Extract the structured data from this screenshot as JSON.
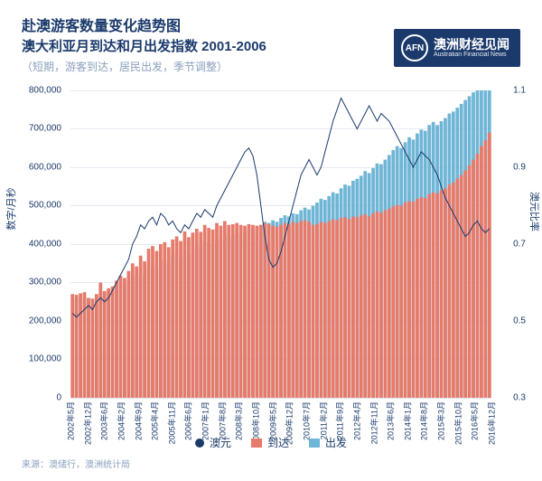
{
  "titles": {
    "main": "赴澳游客数量变化趋势图",
    "sub": "澳大利亚月到达和月出发指数 2001-2006",
    "note": "（短期，游客到达，居民出发，季节调整）"
  },
  "logo": {
    "badge": "AFN",
    "cn": "澳洲财经见闻",
    "en": "Australian Financial News"
  },
  "chart": {
    "type": "combo-bar-line",
    "background": "#ffffff",
    "grid_color": "#e4e9f1",
    "text_color": "#1b3a6b",
    "muted_color": "#8aa0bd",
    "y_left": {
      "title": "数字/月秒",
      "min": 0,
      "max": 800000,
      "step": 100000,
      "labels": [
        "0",
        "100,000",
        "200,000",
        "300,000",
        "400,000",
        "500,000",
        "600,000",
        "700,000",
        "800,000"
      ]
    },
    "y_right": {
      "title": "澳元比率",
      "min": 0.3,
      "max": 1.1,
      "step": 0.2,
      "labels": [
        "0.3",
        "0.5",
        "0.7",
        "0.9",
        "1.1"
      ]
    },
    "x_labels": [
      "2002年5月",
      "2002年12月",
      "2003年6月",
      "2004年2月",
      "2004年9月",
      "2005年4月",
      "2005年11月",
      "2006年6月",
      "2007年1月",
      "2007年8月",
      "2008年3月",
      "2008年10月",
      "2009年5月",
      "2009年12月",
      "2010年7月",
      "2011年2月",
      "2011年9月",
      "2012年4月",
      "2012年11月",
      "2013年6月",
      "2014年1月",
      "2014年8月",
      "2015年3月",
      "2015年10月",
      "2016年5月",
      "2016年12月"
    ],
    "series": {
      "arrivals": {
        "label": "到达",
        "color": "#e67a6b",
        "values": [
          270,
          268,
          272,
          275,
          260,
          258,
          270,
          300,
          278,
          285,
          290,
          305,
          318,
          312,
          330,
          350,
          342,
          370,
          355,
          388,
          395,
          382,
          400,
          405,
          392,
          412,
          420,
          408,
          433,
          418,
          430,
          440,
          432,
          450,
          442,
          438,
          455,
          448,
          460,
          450,
          452,
          455,
          450,
          448,
          452,
          450,
          448,
          450,
          455,
          452,
          448,
          445,
          450,
          455,
          452,
          458,
          455,
          460,
          462,
          458,
          450,
          452,
          458,
          455,
          460,
          465,
          462,
          468,
          470,
          465,
          472,
          470,
          475,
          478,
          472,
          480,
          485,
          482,
          488,
          492,
          498,
          502,
          500,
          508,
          512,
          510,
          518,
          522,
          520,
          530,
          535,
          532,
          540,
          545,
          555,
          560,
          570,
          580,
          592,
          605,
          620,
          635,
          655,
          670,
          690
        ]
      },
      "departures": {
        "label": "出发",
        "color": "#6fb5d6",
        "values": [
          260,
          258,
          262,
          265,
          260,
          258,
          265,
          280,
          275,
          278,
          282,
          290,
          300,
          295,
          305,
          320,
          315,
          330,
          318,
          340,
          345,
          338,
          355,
          360,
          350,
          368,
          375,
          365,
          385,
          375,
          388,
          398,
          392,
          408,
          405,
          400,
          415,
          412,
          425,
          420,
          425,
          430,
          428,
          432,
          440,
          438,
          445,
          450,
          458,
          455,
          462,
          458,
          468,
          475,
          472,
          480,
          478,
          488,
          495,
          490,
          500,
          508,
          518,
          515,
          525,
          535,
          532,
          545,
          555,
          552,
          565,
          570,
          578,
          590,
          585,
          598,
          610,
          608,
          620,
          632,
          645,
          655,
          650,
          665,
          678,
          672,
          688,
          698,
          695,
          710,
          718,
          710,
          720,
          728,
          740,
          745,
          755,
          765,
          775,
          785,
          795,
          802,
          805,
          808,
          810
        ]
      },
      "aud": {
        "label": "澳元",
        "color": "#1b3a6b",
        "line_width": 2,
        "values": [
          0.52,
          0.51,
          0.52,
          0.53,
          0.54,
          0.53,
          0.55,
          0.56,
          0.55,
          0.56,
          0.58,
          0.6,
          0.62,
          0.64,
          0.66,
          0.7,
          0.72,
          0.75,
          0.74,
          0.76,
          0.77,
          0.75,
          0.78,
          0.77,
          0.75,
          0.76,
          0.74,
          0.73,
          0.75,
          0.74,
          0.76,
          0.78,
          0.77,
          0.79,
          0.78,
          0.77,
          0.8,
          0.82,
          0.84,
          0.86,
          0.88,
          0.9,
          0.92,
          0.94,
          0.95,
          0.93,
          0.88,
          0.8,
          0.72,
          0.66,
          0.64,
          0.65,
          0.68,
          0.72,
          0.76,
          0.8,
          0.84,
          0.88,
          0.9,
          0.92,
          0.9,
          0.88,
          0.9,
          0.94,
          0.98,
          1.02,
          1.05,
          1.08,
          1.06,
          1.04,
          1.02,
          1.0,
          1.02,
          1.04,
          1.06,
          1.04,
          1.02,
          1.04,
          1.03,
          1.02,
          1.0,
          0.98,
          0.96,
          0.94,
          0.92,
          0.9,
          0.92,
          0.94,
          0.93,
          0.92,
          0.9,
          0.88,
          0.85,
          0.82,
          0.8,
          0.78,
          0.76,
          0.74,
          0.72,
          0.73,
          0.75,
          0.76,
          0.74,
          0.73,
          0.74
        ]
      }
    }
  },
  "legend": {
    "items": [
      {
        "label": "澳元",
        "swatch": "#1b3a6b",
        "shape": "circle"
      },
      {
        "label": "到达",
        "swatch": "#e67a6b",
        "shape": "square"
      },
      {
        "label": "出发",
        "swatch": "#6fb5d6",
        "shape": "square"
      }
    ]
  },
  "source": "来源：澳储行，澳洲统计局"
}
